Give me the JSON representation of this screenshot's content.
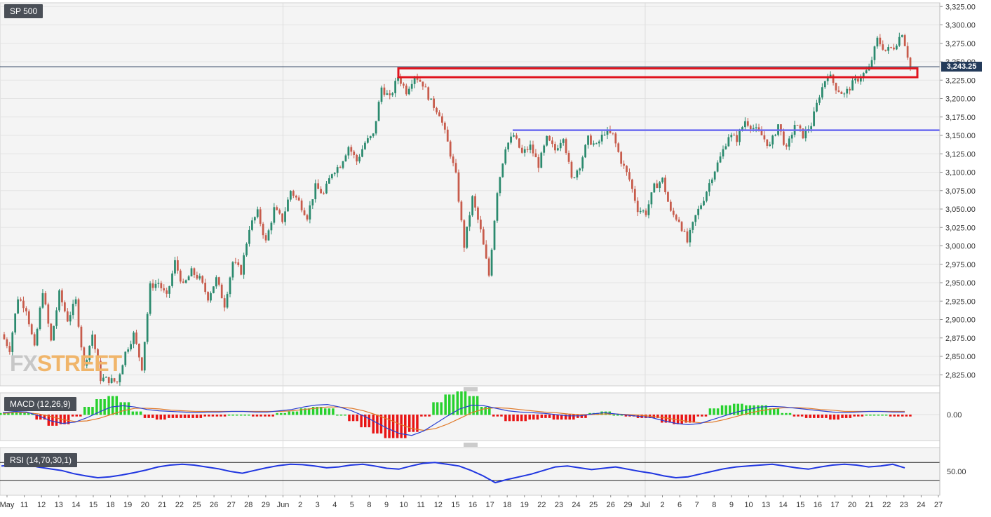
{
  "brand": {
    "watermark_part1": "FX",
    "watermark_part2": "STREET"
  },
  "colors": {
    "up": "#2b8a6e",
    "down": "#c75b4b",
    "accent_red": "#e0141e",
    "level_blue": "#6b6bf0",
    "macd_line": "#2a3fd1",
    "signal_line": "#e07a2a",
    "hist_pos": "#27d12e",
    "hist_neg": "#e81414",
    "rsi_line": "#2036e0"
  },
  "chart_data": [
    {
      "type": "candlestick",
      "title": "SP 500",
      "ylim": [
        2810,
        3330
      ],
      "y_ticks": [
        "2,825.00",
        "2,850.00",
        "2,875.00",
        "2,900.00",
        "2,925.00",
        "2,950.00",
        "2,975.00",
        "3,000.00",
        "3,025.00",
        "3,050.00",
        "3,075.00",
        "3,100.00",
        "3,125.00",
        "3,150.00",
        "3,175.00",
        "3,200.00",
        "3,225.00",
        "3,250.00",
        "3,275.00",
        "3,300.00",
        "3,325.00"
      ],
      "last_price": "3,243.25",
      "x_tick_labels": [
        "May",
        "11",
        "12",
        "13",
        "14",
        "15",
        "18",
        "19",
        "20",
        "21",
        "22",
        "25",
        "26",
        "27",
        "28",
        "29",
        "Jun",
        "2",
        "3",
        "4",
        "5",
        "8",
        "9",
        "10",
        "11",
        "12",
        "15",
        "16",
        "17",
        "18",
        "19",
        "22",
        "23",
        "24",
        "25",
        "26",
        "29",
        "Jul",
        "2",
        "6",
        "7",
        "8",
        "9",
        "10",
        "13",
        "14",
        "15",
        "16",
        "17",
        "20",
        "21",
        "22",
        "23",
        "24",
        "27"
      ],
      "path": [
        2880,
        2860,
        2930,
        2915,
        2860,
        2940,
        2870,
        2935,
        2900,
        2925,
        2835,
        2880,
        2820,
        2818,
        2815,
        2855,
        2880,
        2835,
        2945,
        2950,
        2930,
        2978,
        2945,
        2965,
        2955,
        2930,
        2955,
        2920,
        2978,
        2965,
        3025,
        3045,
        3005,
        3050,
        3035,
        3075,
        3060,
        3040,
        3080,
        3070,
        3100,
        3110,
        3135,
        3115,
        3140,
        3150,
        3215,
        3200,
        3230,
        3210,
        3232,
        3220,
        3195,
        3180,
        3140,
        3095,
        3000,
        3065,
        3020,
        2960,
        3075,
        3135,
        3150,
        3125,
        3135,
        3110,
        3145,
        3130,
        3150,
        3090,
        3110,
        3145,
        3135,
        3155,
        3150,
        3115,
        3090,
        3050,
        3045,
        3080,
        3090,
        3045,
        3035,
        3005,
        3040,
        3065,
        3095,
        3120,
        3150,
        3145,
        3170,
        3160,
        3150,
        3135,
        3165,
        3130,
        3165,
        3150,
        3165,
        3205,
        3235,
        3215,
        3205,
        3220,
        3230,
        3240,
        3280,
        3265,
        3270,
        3290,
        3243
      ],
      "levels": [
        {
          "kind": "resistance-zone",
          "from": 3229,
          "to": 3241
        },
        {
          "kind": "support-line",
          "value": 3157
        },
        {
          "kind": "last-price-line",
          "value": 3243.25
        }
      ]
    },
    {
      "type": "line+bar",
      "title": "MACD (12,26,9)",
      "y_ticks": [
        "0.00"
      ],
      "macd": [
        3,
        5,
        4,
        -2,
        -10,
        -14,
        -12,
        -5,
        4,
        12,
        14,
        12,
        8,
        6,
        5,
        4,
        3,
        4,
        4,
        5,
        5,
        4,
        4,
        6,
        8,
        12,
        15,
        16,
        12,
        6,
        -2,
        -12,
        -22,
        -30,
        -33,
        -26,
        -14,
        -2,
        9,
        15,
        14,
        10,
        6,
        4,
        3,
        2,
        0,
        -2,
        -2,
        1,
        3,
        1,
        -1,
        -3,
        -5,
        -10,
        -14,
        -16,
        -14,
        -8,
        -2,
        4,
        8,
        12,
        13,
        12,
        10,
        8,
        6,
        4,
        3,
        4,
        5,
        5,
        4,
        4
      ],
      "signal": [
        2,
        3,
        3,
        1,
        -3,
        -8,
        -11,
        -10,
        -6,
        0,
        6,
        10,
        10,
        9,
        7,
        6,
        5,
        5,
        5,
        5,
        5,
        5,
        5,
        5,
        6,
        8,
        10,
        12,
        12,
        10,
        6,
        0,
        -7,
        -15,
        -22,
        -25,
        -22,
        -15,
        -6,
        3,
        9,
        11,
        10,
        8,
        6,
        4,
        3,
        1,
        0,
        0,
        1,
        1,
        0,
        -1,
        -3,
        -5,
        -8,
        -11,
        -13,
        -12,
        -8,
        -3,
        2,
        6,
        9,
        11,
        11,
        10,
        8,
        7,
        5,
        5,
        5,
        5,
        5,
        5
      ]
    },
    {
      "type": "line",
      "title": "RSI (14,70,30,1)",
      "ylim": [
        0,
        100
      ],
      "y_ticks": [
        "50.00"
      ],
      "bands": [
        70,
        30
      ],
      "values": [
        62,
        64,
        66,
        60,
        56,
        52,
        45,
        40,
        36,
        38,
        42,
        47,
        53,
        60,
        64,
        66,
        64,
        60,
        56,
        50,
        46,
        52,
        58,
        63,
        66,
        65,
        62,
        58,
        60,
        64,
        66,
        62,
        57,
        55,
        62,
        68,
        70,
        66,
        62,
        52,
        40,
        25,
        32,
        38,
        44,
        52,
        60,
        62,
        58,
        54,
        57,
        60,
        55,
        50,
        46,
        40,
        36,
        38,
        44,
        50,
        56,
        60,
        62,
        64,
        66,
        62,
        58,
        55,
        60,
        64,
        66,
        64,
        60,
        62,
        66,
        58
      ]
    }
  ]
}
